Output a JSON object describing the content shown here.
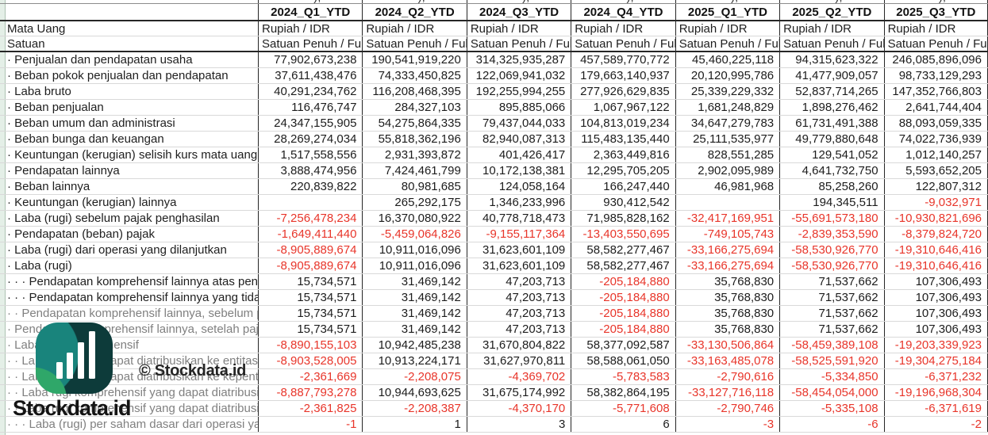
{
  "watermark": {
    "logo_text": "Stockdata.id",
    "copyright_text": "© Stockdata.id",
    "logo_icon": "bar-chart-icon"
  },
  "decor": {
    "top_fragment": "),"
  },
  "colors": {
    "negative": "#e8352a",
    "grid_dark": "#262626",
    "grid_light": "#d9d9d9",
    "muted_label": "#808080",
    "logo_dark": "#0d3b3a",
    "logo_teal": "#19847c",
    "logo_green": "#2fa769",
    "left_strip": "#e4efe7"
  },
  "table": {
    "corner_labels": {
      "currency": "Mata Uang",
      "unit": "Satuan"
    },
    "columns": [
      "2024_Q1_YTD",
      "2024_Q2_YTD",
      "2024_Q3_YTD",
      "2024_Q4_YTD",
      "2025_Q1_YTD",
      "2025_Q2_YTD",
      "2025_Q3_YTD"
    ],
    "currency_values": [
      "Rupiah / IDR",
      "Rupiah / IDR",
      "Rupiah / IDR",
      "Rupiah / IDR",
      "Rupiah / IDR",
      "Rupiah / IDR",
      "Rupiah / IDR"
    ],
    "unit_values": [
      "Satuan Penuh / Full Am",
      "Satuan Penuh / Full Am",
      "Satuan Penuh / Full Am",
      "Satuan Penuh / Full Am",
      "Satuan Penuh / Full Am",
      "Satuan Penuh / Full Am",
      "Satuan Penuh / Full Am"
    ],
    "rows": [
      {
        "label": "· Penjualan dan pendapatan usaha",
        "muted": false,
        "values": [
          "77,902,673,238",
          "190,541,919,220",
          "314,325,935,287",
          "457,589,770,772",
          "45,460,225,118",
          "94,315,623,322",
          "246,085,896,096"
        ]
      },
      {
        "label": "· Beban pokok penjualan dan pendapatan",
        "muted": false,
        "values": [
          "37,611,438,476",
          "74,333,450,825",
          "122,069,941,032",
          "179,663,140,937",
          "20,120,995,786",
          "41,477,909,057",
          "98,733,129,293"
        ]
      },
      {
        "label": "· Laba bruto",
        "muted": false,
        "values": [
          "40,291,234,762",
          "116,208,468,395",
          "192,255,994,255",
          "277,926,629,835",
          "25,339,229,332",
          "52,837,714,265",
          "147,352,766,803"
        ]
      },
      {
        "label": "· Beban penjualan",
        "muted": false,
        "values": [
          "116,476,747",
          "284,327,103",
          "895,885,066",
          "1,067,967,122",
          "1,681,248,829",
          "1,898,276,462",
          "2,641,744,404"
        ]
      },
      {
        "label": "· Beban umum dan administrasi",
        "muted": false,
        "values": [
          "24,347,155,905",
          "54,275,864,335",
          "79,437,044,033",
          "104,813,019,234",
          "34,647,279,783",
          "61,731,491,388",
          "88,093,059,335"
        ]
      },
      {
        "label": "· Beban bunga dan keuangan",
        "muted": false,
        "values": [
          "28,269,274,034",
          "55,818,362,196",
          "82,940,087,313",
          "115,483,135,440",
          "25,111,535,977",
          "49,779,880,648",
          "74,022,736,939"
        ]
      },
      {
        "label": "· Keuntungan (kerugian) selisih kurs mata uang asin",
        "muted": false,
        "values": [
          "1,517,558,556",
          "2,931,393,872",
          "401,426,417",
          "2,363,449,816",
          "828,551,285",
          "129,541,052",
          "1,012,140,257"
        ]
      },
      {
        "label": "· Pendapatan lainnya",
        "muted": false,
        "values": [
          "3,888,474,956",
          "7,424,461,799",
          "10,172,138,381",
          "12,295,705,205",
          "2,902,095,989",
          "4,641,732,750",
          "5,593,652,205"
        ]
      },
      {
        "label": "· Beban lainnya",
        "muted": false,
        "values": [
          "220,839,822",
          "80,981,685",
          "124,058,164",
          "166,247,440",
          "46,981,968",
          "85,258,260",
          "122,807,312"
        ]
      },
      {
        "label": "· Keuntungan (kerugian) lainnya",
        "muted": false,
        "values": [
          "",
          "265,292,175",
          "1,346,233,996",
          "930,412,542",
          "",
          "194,345,511",
          "-9,032,971"
        ]
      },
      {
        "label": "· Laba (rugi) sebelum pajak penghasilan",
        "muted": false,
        "values": [
          "-7,256,478,234",
          "16,370,080,922",
          "40,778,718,473",
          "71,985,828,162",
          "-32,417,169,951",
          "-55,691,573,180",
          "-10,930,821,696"
        ]
      },
      {
        "label": "· Pendapatan (beban) pajak",
        "muted": false,
        "values": [
          "-1,649,411,440",
          "-5,459,064,826",
          "-9,155,117,364",
          "-13,403,550,695",
          "-749,105,743",
          "-2,839,353,590",
          "-8,379,824,720"
        ]
      },
      {
        "label": "· Laba (rugi) dari operasi yang dilanjutkan",
        "muted": false,
        "values": [
          "-8,905,889,674",
          "10,911,016,096",
          "31,623,601,109",
          "58,582,277,467",
          "-33,166,275,694",
          "-58,530,926,770",
          "-19,310,646,416"
        ]
      },
      {
        "label": "· Laba (rugi)",
        "muted": false,
        "values": [
          "-8,905,889,674",
          "10,911,016,096",
          "31,623,601,109",
          "58,582,277,467",
          "-33,166,275,694",
          "-58,530,926,770",
          "-19,310,646,416"
        ]
      },
      {
        "label": "· · · Pendapatan komprehensif lainnya atas penguku",
        "muted": false,
        "values": [
          "15,734,571",
          "31,469,142",
          "47,203,713",
          "-205,184,880",
          "35,768,830",
          "71,537,662",
          "107,306,493"
        ]
      },
      {
        "label": "· · · Pendapatan komprehensif lainnya yang tidak ak",
        "muted": false,
        "values": [
          "15,734,571",
          "31,469,142",
          "47,203,713",
          "-205,184,880",
          "35,768,830",
          "71,537,662",
          "107,306,493"
        ]
      },
      {
        "label": "· · Pendapatan komprehensif lainnya, sebelum paja",
        "muted": true,
        "values": [
          "15,734,571",
          "31,469,142",
          "47,203,713",
          "-205,184,880",
          "35,768,830",
          "71,537,662",
          "107,306,493"
        ]
      },
      {
        "label": "· Pendapatan komprehensif lainnya, setelah pajak",
        "muted": true,
        "values": [
          "15,734,571",
          "31,469,142",
          "47,203,713",
          "-205,184,880",
          "35,768,830",
          "71,537,662",
          "107,306,493"
        ]
      },
      {
        "label": "· Laba rugi komprehensif",
        "muted": true,
        "values": [
          "-8,890,155,103",
          "10,942,485,238",
          "31,670,804,822",
          "58,377,092,587",
          "-33,130,506,864",
          "-58,459,389,108",
          "-19,203,339,923"
        ]
      },
      {
        "label": "· · Laba rugi yang dapat diatribusikan ke entitas ind",
        "muted": true,
        "values": [
          "-8,903,528,005",
          "10,913,224,171",
          "31,627,970,811",
          "58,588,061,050",
          "-33,163,485,078",
          "-58,525,591,920",
          "-19,304,275,184"
        ]
      },
      {
        "label": "· · Laba rugi yang dapat diatribusikan ke kepenting",
        "muted": true,
        "values": [
          "-2,361,669",
          "-2,208,075",
          "-4,369,702",
          "-5,783,583",
          "-2,790,616",
          "-5,334,850",
          "-6,371,232"
        ]
      },
      {
        "label": "· · Laba rugi komprehensif yang dapat diatribusikan",
        "muted": true,
        "values": [
          "-8,887,793,278",
          "10,944,693,625",
          "31,675,174,992",
          "58,382,864,195",
          "-33,127,716,118",
          "-58,454,054,000",
          "-19,196,968,304"
        ]
      },
      {
        "label": "· · Laba rugi komprehensif yang dapat diatribusikan",
        "muted": true,
        "values": [
          "-2,361,825",
          "-2,208,387",
          "-4,370,170",
          "-5,771,608",
          "-2,790,746",
          "-5,335,108",
          "-6,371,619"
        ]
      },
      {
        "label": "· · · Laba (rugi) per saham dasar dari operasi yang dil",
        "muted": true,
        "values": [
          "-1",
          "1",
          "3",
          "6",
          "-3",
          "-6",
          "-2"
        ]
      }
    ]
  }
}
